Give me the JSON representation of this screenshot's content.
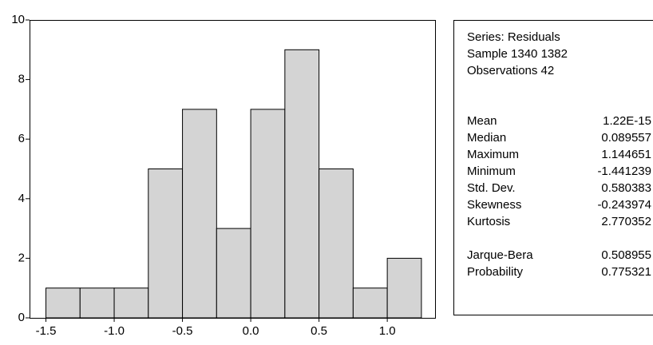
{
  "chart_data": {
    "type": "histogram",
    "bins": [
      -1.5,
      -1.25,
      -1.0,
      -0.75,
      -0.5,
      -0.25,
      0,
      0.25,
      0.5,
      0.75,
      1.0,
      1.25
    ],
    "values": [
      1,
      1,
      1,
      5,
      7,
      3,
      7,
      9,
      5,
      1,
      2
    ],
    "color": "#d4d4d4",
    "xlim": [
      -1.62,
      1.35
    ],
    "xticks": [
      -1.5,
      {
        "value": -1.0,
        "label": "-1.0"
      },
      -0.5,
      {
        "value": 0,
        "label": "0.0"
      },
      0.5,
      {
        "value": 1.0,
        "label": "1.0"
      }
    ],
    "ylim": [
      0,
      10
    ],
    "yticks": [
      0,
      2,
      4,
      6,
      8,
      10
    ]
  },
  "stats": {
    "header": [
      "Series: Residuals",
      "Sample 1340 1382",
      "Observations 42"
    ],
    "moments": [
      [
        "Mean",
        "1.22E-15"
      ],
      [
        "Median",
        "0.089557"
      ],
      [
        "Maximum",
        "1.144651"
      ],
      [
        "Minimum",
        "-1.441239"
      ],
      [
        "Std. Dev.",
        "0.580383"
      ],
      [
        "Skewness",
        "-0.243974"
      ],
      [
        "Kurtosis",
        "2.770352"
      ]
    ],
    "tests": [
      [
        "Jarque-Bera",
        "0.508955"
      ],
      [
        "Probability",
        "0.775321"
      ]
    ]
  }
}
